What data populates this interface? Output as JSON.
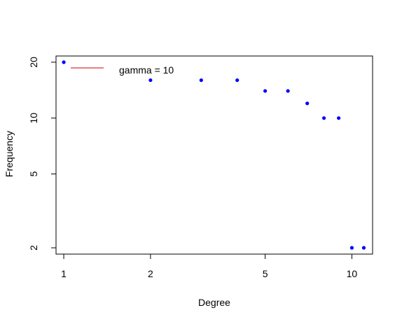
{
  "chart_data": {
    "type": "scatter",
    "title": "",
    "xlabel": "Degree",
    "ylabel": "Frequency",
    "xscale": "log",
    "yscale": "log",
    "xlim": [
      0.94,
      11.8
    ],
    "ylim": [
      1.85,
      21.6
    ],
    "xticks": [
      1,
      2,
      5,
      10
    ],
    "yticks": [
      2,
      5,
      10,
      20
    ],
    "grid": false,
    "series": [
      {
        "color": "#0000ff",
        "x": [
          1,
          2,
          3,
          4,
          5,
          6,
          7,
          8,
          9,
          10,
          11
        ],
        "y": [
          20,
          16,
          16,
          16,
          14,
          14,
          12,
          10,
          10,
          2,
          2
        ]
      }
    ],
    "legend": {
      "placement": "top-left",
      "entries": [
        {
          "label": "gamma = 10",
          "color": "#cc0000",
          "style": "line"
        }
      ]
    }
  }
}
